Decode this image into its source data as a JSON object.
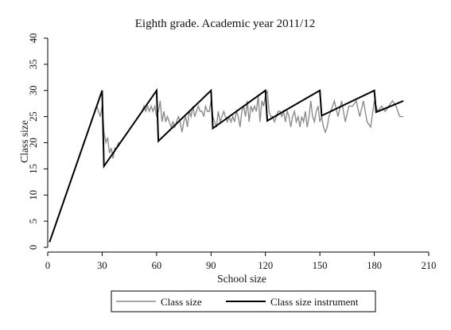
{
  "chart_data": {
    "type": "line",
    "title": "Eighth grade. Academic year 2011/12",
    "xlabel": "School size",
    "ylabel": "Class size",
    "xlim": [
      0,
      210
    ],
    "ylim": [
      0,
      40
    ],
    "xticks": [
      0,
      30,
      60,
      90,
      120,
      150,
      180,
      210
    ],
    "yticks": [
      0,
      5,
      10,
      15,
      20,
      25,
      30,
      35,
      40
    ],
    "grid": false,
    "legend": "bottom",
    "series": [
      {
        "name": "Class size",
        "color": "#8c8c8c",
        "x": [
          1,
          3,
          5,
          7,
          9,
          11,
          13,
          15,
          17,
          19,
          21,
          23,
          25,
          27,
          28,
          29,
          30,
          31,
          32,
          33,
          34,
          35,
          36,
          37,
          38,
          39,
          40,
          42,
          44,
          46,
          48,
          50,
          52,
          53,
          54,
          55,
          56,
          57,
          58,
          59,
          60,
          61,
          62,
          63,
          64,
          65,
          66,
          67,
          68,
          69,
          70,
          71,
          72,
          73,
          74,
          75,
          76,
          77,
          78,
          79,
          80,
          81,
          82,
          83,
          84,
          85,
          86,
          87,
          88,
          89,
          90,
          91,
          92,
          93,
          94,
          95,
          96,
          97,
          98,
          99,
          100,
          101,
          102,
          103,
          104,
          105,
          106,
          107,
          108,
          109,
          110,
          111,
          112,
          113,
          114,
          115,
          116,
          117,
          118,
          119,
          120,
          121,
          122,
          123,
          124,
          125,
          126,
          127,
          128,
          129,
          130,
          131,
          132,
          133,
          134,
          135,
          136,
          137,
          138,
          139,
          140,
          141,
          142,
          143,
          144,
          145,
          146,
          147,
          148,
          149,
          150,
          151,
          152,
          153,
          154,
          155,
          156,
          157,
          158,
          160,
          162,
          164,
          166,
          168,
          170,
          172,
          174,
          176,
          178,
          180,
          182,
          184,
          186,
          188,
          190,
          192,
          194,
          196
        ],
        "values": [
          1,
          3,
          5,
          7,
          9,
          11,
          13,
          15,
          17,
          19,
          21,
          23,
          25,
          27,
          26,
          25,
          27,
          22,
          20,
          21,
          18,
          19,
          17,
          19,
          19,
          20,
          20,
          21,
          22,
          23,
          24,
          25,
          26,
          27,
          26,
          27,
          26,
          27,
          26,
          27,
          25,
          26,
          28,
          24,
          26,
          24,
          25,
          24,
          23,
          24,
          23,
          24,
          25,
          24,
          22,
          24,
          25,
          23,
          26,
          25,
          27,
          25,
          26,
          27,
          26,
          26,
          25,
          27,
          26,
          26,
          28,
          25,
          24,
          23,
          26,
          24,
          25,
          26,
          25,
          24,
          25,
          24,
          25,
          24,
          26,
          25,
          23,
          26,
          27,
          25,
          28,
          24,
          27,
          26,
          27,
          26,
          29,
          24,
          28,
          27,
          29,
          30,
          26,
          25,
          25,
          24,
          25,
          26,
          26,
          25,
          26,
          24,
          26,
          25,
          23,
          25,
          26,
          24,
          25,
          23,
          25,
          24,
          26,
          23,
          25,
          28,
          25,
          24,
          26,
          27,
          24,
          25,
          23,
          22,
          23,
          25,
          26,
          27,
          28,
          25,
          28,
          24,
          27,
          27,
          28,
          25,
          28,
          24,
          23,
          28,
          26,
          27,
          26,
          27,
          28,
          27,
          25,
          25
        ]
      },
      {
        "name": "Class size instrument",
        "color": "#000000",
        "x": [
          1,
          30,
          31,
          60,
          61,
          90,
          91,
          120,
          121,
          150,
          151,
          180,
          181,
          196
        ],
        "values": [
          1,
          30,
          15.5,
          30,
          20.3,
          30,
          22.75,
          30,
          24.2,
          30,
          25.17,
          30,
          25.86,
          28
        ]
      }
    ]
  }
}
